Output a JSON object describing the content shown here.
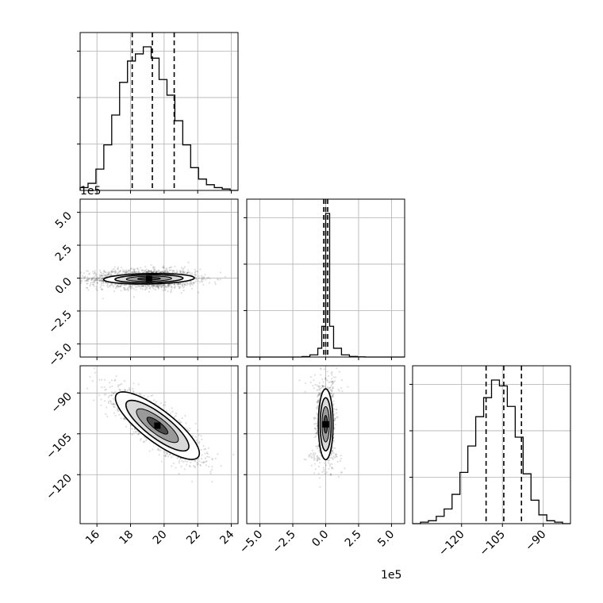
{
  "chart_data": {
    "type": "corner",
    "title": "",
    "grid": true,
    "parameters": [
      {
        "index": 0,
        "range": [
          15,
          24.4
        ],
        "ticks": [
          16,
          18,
          20,
          22,
          24
        ],
        "tick_labels": [
          "16",
          "18",
          "20",
          "22",
          "24"
        ],
        "offset_label": ""
      },
      {
        "index": 1,
        "range": [
          -6,
          6
        ],
        "ticks": [
          -5.0,
          -2.5,
          0.0,
          2.5,
          5.0
        ],
        "tick_labels": [
          "−5.0",
          "−2.5",
          "0.0",
          "2.5",
          "5.0"
        ],
        "offset_label": "1e5"
      },
      {
        "index": 2,
        "range": [
          -138,
          -80
        ],
        "ticks": [
          -120,
          -105,
          -90
        ],
        "tick_labels": [
          "−120",
          "−105",
          "−90"
        ],
        "offset_label": ""
      }
    ],
    "histograms": [
      {
        "param": 0,
        "bin_edges": [
          15.0,
          15.47,
          15.94,
          16.41,
          16.88,
          17.35,
          17.82,
          18.29,
          18.76,
          19.23,
          19.7,
          20.17,
          20.64,
          21.11,
          21.58,
          22.05,
          22.52,
          22.99,
          23.46,
          23.93,
          24.4
        ],
        "counts": [
          0.02,
          0.05,
          0.15,
          0.32,
          0.53,
          0.76,
          0.91,
          0.96,
          1.01,
          0.93,
          0.78,
          0.67,
          0.49,
          0.32,
          0.16,
          0.08,
          0.04,
          0.02,
          0.01,
          0.0
        ],
        "quantiles": [
          18.1,
          19.3,
          20.6
        ]
      },
      {
        "param": 1,
        "bin_edges": [
          -6.0,
          -5.4,
          -4.8,
          -4.2,
          -3.6,
          -3.0,
          -2.4,
          -1.8,
          -1.2,
          -0.6,
          -0.3,
          0.0,
          0.3,
          0.6,
          1.2,
          1.8,
          2.4,
          3.0,
          3.6,
          4.2,
          4.8,
          5.4,
          6.0
        ],
        "counts": [
          0,
          0,
          0,
          0,
          0,
          0,
          0,
          0.003,
          0.015,
          0.06,
          0.21,
          0.98,
          0.21,
          0.06,
          0.015,
          0.004,
          0.001,
          0,
          0,
          0,
          0,
          0
        ],
        "quantiles": [
          -0.15,
          0.0,
          0.15
        ]
      },
      {
        "param": 2,
        "bin_edges": [
          -138,
          -135.1,
          -132.2,
          -129.3,
          -126.4,
          -123.5,
          -120.6,
          -117.7,
          -114.8,
          -111.9,
          -109.0,
          -106.1,
          -103.2,
          -100.3,
          -97.4,
          -94.5,
          -91.6,
          -88.7,
          -85.8,
          -82.9,
          -80.0
        ],
        "counts": [
          0.0,
          0.01,
          0.02,
          0.05,
          0.1,
          0.2,
          0.35,
          0.53,
          0.73,
          0.86,
          0.98,
          0.94,
          0.8,
          0.59,
          0.34,
          0.16,
          0.06,
          0.02,
          0.01,
          0.0
        ],
        "quantiles": [
          -111,
          -104.5,
          -98
        ]
      }
    ],
    "pairs": [
      {
        "x_param": 0,
        "y_param": 1,
        "center": [
          19.1,
          -0.05
        ],
        "spread": [
          1.35,
          0.2
        ],
        "rho": 0.15,
        "scatter_extent_y": 3.0,
        "contour_radii": [
          0.5,
          1.0,
          1.5,
          2.0
        ]
      },
      {
        "x_param": 0,
        "y_param": 2,
        "center": [
          19.6,
          -102
        ],
        "spread": [
          1.25,
          6.2
        ],
        "rho": -0.82,
        "scatter_extent_y": 1.0,
        "contour_radii": [
          0.5,
          1.0,
          1.5,
          2.0
        ]
      },
      {
        "x_param": 1,
        "y_param": 2,
        "center": [
          0.0,
          -101.5
        ],
        "spread": [
          0.28,
          6.5
        ],
        "rho": 0.0,
        "scatter_extent_y": 1.0,
        "contour_radii": [
          0.5,
          1.0,
          1.5,
          2.0
        ]
      }
    ]
  }
}
